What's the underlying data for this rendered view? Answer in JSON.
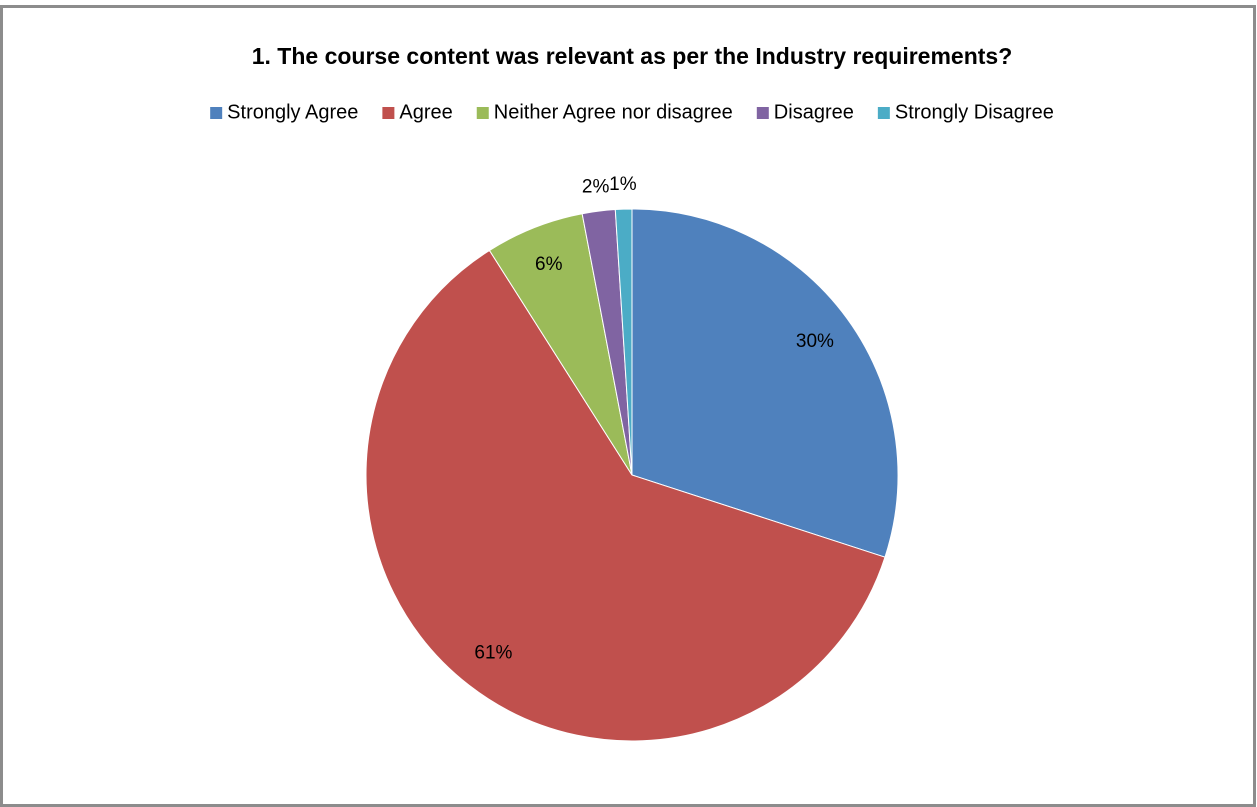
{
  "chart_data": {
    "type": "pie",
    "title": "1. The course content was relevant as per the Industry requirements?",
    "categories": [
      "Strongly Agree",
      "Agree",
      "Neither Agree nor disagree",
      "Disagree",
      "Strongly Disagree"
    ],
    "values": [
      30,
      61,
      6,
      2,
      1
    ],
    "value_labels": [
      "30%",
      "61%",
      "6%",
      "2%",
      "1%"
    ],
    "colors": [
      "#4f81bd",
      "#c0504d",
      "#9bbb59",
      "#8064a2",
      "#4bacc6"
    ],
    "legend": "top"
  }
}
